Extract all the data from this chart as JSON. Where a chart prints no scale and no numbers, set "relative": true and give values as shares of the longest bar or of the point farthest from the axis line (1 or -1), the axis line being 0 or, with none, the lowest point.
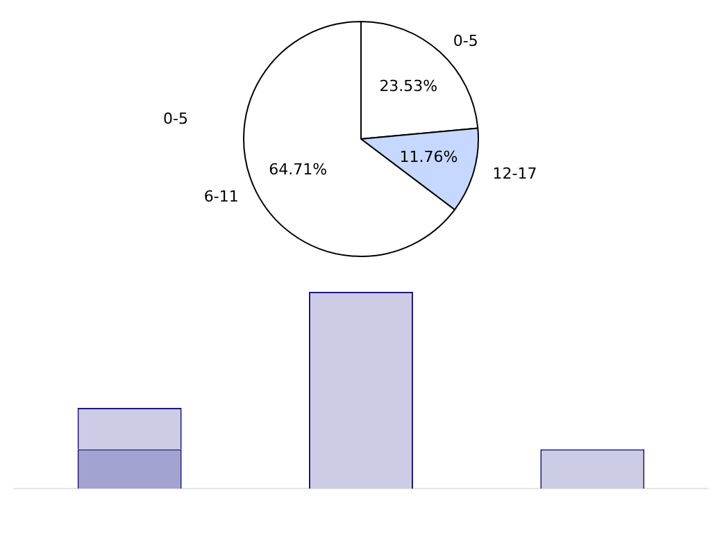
{
  "chart_data": [
    {
      "type": "pie",
      "categories": [
        "0-5",
        "12-17",
        "6-11"
      ],
      "values": [
        23.53,
        11.76,
        64.71
      ],
      "colors": [
        "#ffffff",
        "#c6d8ff",
        "#ffffff"
      ],
      "value_labels": [
        "23.53%",
        "11.76%",
        "64.71%"
      ],
      "legend": false,
      "annotations": [
        "0-5"
      ]
    },
    {
      "type": "bar",
      "relative": true,
      "stacked": true,
      "categories": [
        null,
        null,
        null
      ],
      "legend": false,
      "series": [
        {
          "color": "#a3a3d1",
          "values": [
            0.2,
            null,
            null
          ]
        },
        {
          "color": "#cccce6",
          "values": [
            0.21,
            1,
            0.2
          ]
        }
      ]
    }
  ]
}
